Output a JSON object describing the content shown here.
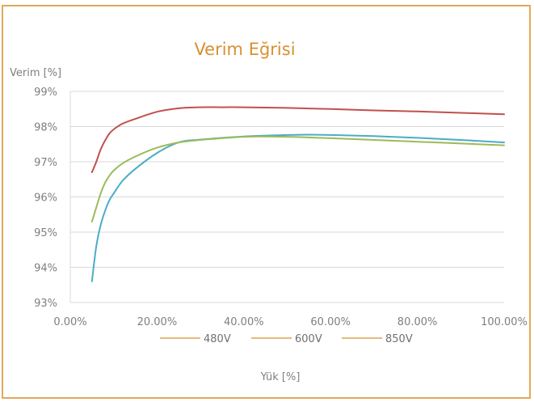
{
  "chart_data": {
    "type": "line",
    "title": "Verim Eğrisi",
    "ylabel": "Verim [%]",
    "xlabel": "Yük [%]",
    "xlim": [
      0,
      100
    ],
    "ylim": [
      93,
      99
    ],
    "xticks": [
      0,
      20,
      40,
      60,
      80,
      100
    ],
    "xtick_labels": [
      "0.00%",
      "20.00%",
      "40.00%",
      "60.00%",
      "80.00%",
      "100.00%"
    ],
    "yticks": [
      93,
      94,
      95,
      96,
      97,
      98,
      99
    ],
    "ytick_labels": [
      "93%",
      "94%",
      "95%",
      "96%",
      "97%",
      "98%",
      "99%"
    ],
    "grid": true,
    "legend_position": "bottom",
    "series": [
      {
        "name": "480V",
        "color": "#4bacc6",
        "x": [
          5,
          6,
          7,
          8,
          9,
          10,
          12,
          15,
          20,
          25,
          30,
          40,
          50,
          55,
          60,
          70,
          80,
          90,
          100
        ],
        "y": [
          93.6,
          94.6,
          95.2,
          95.6,
          95.9,
          96.1,
          96.45,
          96.8,
          97.25,
          97.55,
          97.63,
          97.72,
          97.76,
          97.77,
          97.76,
          97.73,
          97.68,
          97.62,
          97.55
        ]
      },
      {
        "name": "600V",
        "color": "#9bbb59",
        "x": [
          5,
          6,
          7,
          8,
          9,
          10,
          12,
          15,
          20,
          25,
          30,
          40,
          50,
          60,
          70,
          80,
          90,
          100
        ],
        "y": [
          95.3,
          95.7,
          96.1,
          96.4,
          96.6,
          96.75,
          96.95,
          97.15,
          97.4,
          97.55,
          97.62,
          97.71,
          97.71,
          97.67,
          97.62,
          97.57,
          97.52,
          97.47
        ]
      },
      {
        "name": "850V",
        "color": "#c0504d",
        "x": [
          5,
          6,
          7,
          8,
          9,
          10,
          12,
          15,
          20,
          25,
          30,
          35,
          40,
          50,
          60,
          70,
          80,
          90,
          100
        ],
        "y": [
          96.7,
          97.0,
          97.35,
          97.6,
          97.8,
          97.92,
          98.08,
          98.22,
          98.42,
          98.52,
          98.55,
          98.55,
          98.55,
          98.53,
          98.5,
          98.46,
          98.43,
          98.39,
          98.35
        ]
      }
    ]
  },
  "colors": {
    "frame": "#e3a85a",
    "title": "#d8902f",
    "grid": "#d9d9d9",
    "axis_text": "#7f7f7f",
    "legend_line": "#e0a050"
  }
}
